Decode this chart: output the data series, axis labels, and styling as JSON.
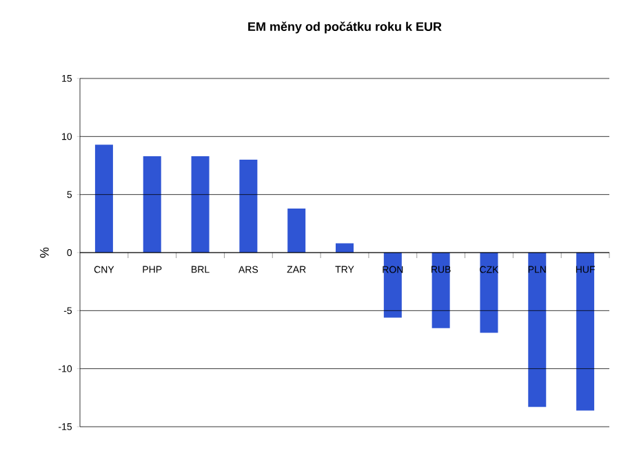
{
  "chart_data": {
    "type": "bar",
    "title": "EM měny od počátku roku k EUR",
    "ylabel": "%",
    "categories": [
      "CNY",
      "PHP",
      "BRL",
      "ARS",
      "ZAR",
      "TRY",
      "RON",
      "RUB",
      "CZK",
      "PLN",
      "HUF"
    ],
    "values": [
      9.3,
      8.3,
      8.3,
      8,
      3.8,
      0.8,
      -5.6,
      -6.5,
      -6.9,
      -13.3,
      -13.6
    ],
    "color": "#2f55d4",
    "ylim": [
      -15,
      15
    ],
    "yticks": [
      -15,
      -10,
      -5,
      0,
      5,
      10,
      15
    ],
    "grid": "y"
  }
}
